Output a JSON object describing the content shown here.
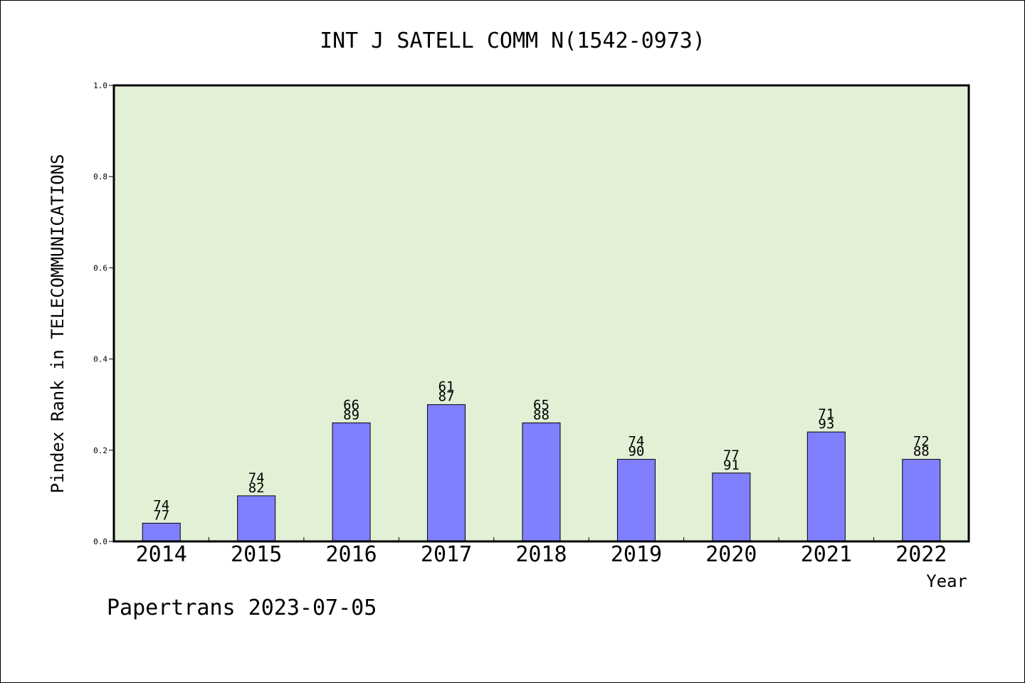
{
  "chart_data": {
    "type": "bar",
    "title": "INT J SATELL COMM N(1542-0973)",
    "xlabel": "Year",
    "ylabel": "Pindex Rank in TELECOMMUNICATIONS",
    "ylim": [
      0,
      1
    ],
    "yticks": [
      "0.0",
      "0.2",
      "0.4",
      "0.6",
      "0.8",
      "1.0"
    ],
    "categories": [
      "2014",
      "2015",
      "2016",
      "2017",
      "2018",
      "2019",
      "2020",
      "2021",
      "2022"
    ],
    "values": [
      0.04,
      0.1,
      0.26,
      0.3,
      0.26,
      0.18,
      0.15,
      0.24,
      0.18
    ],
    "label_top": [
      "74",
      "74",
      "66",
      "61",
      "65",
      "74",
      "77",
      "71",
      "72"
    ],
    "label_bottom": [
      "77",
      "82",
      "89",
      "87",
      "88",
      "90",
      "91",
      "93",
      "88"
    ],
    "grid": false,
    "colors": {
      "plot_bg": "#e2f0d6",
      "bar": "#8080ff"
    }
  },
  "footer": {
    "watermark": "Papertrans 2023-07-05"
  }
}
